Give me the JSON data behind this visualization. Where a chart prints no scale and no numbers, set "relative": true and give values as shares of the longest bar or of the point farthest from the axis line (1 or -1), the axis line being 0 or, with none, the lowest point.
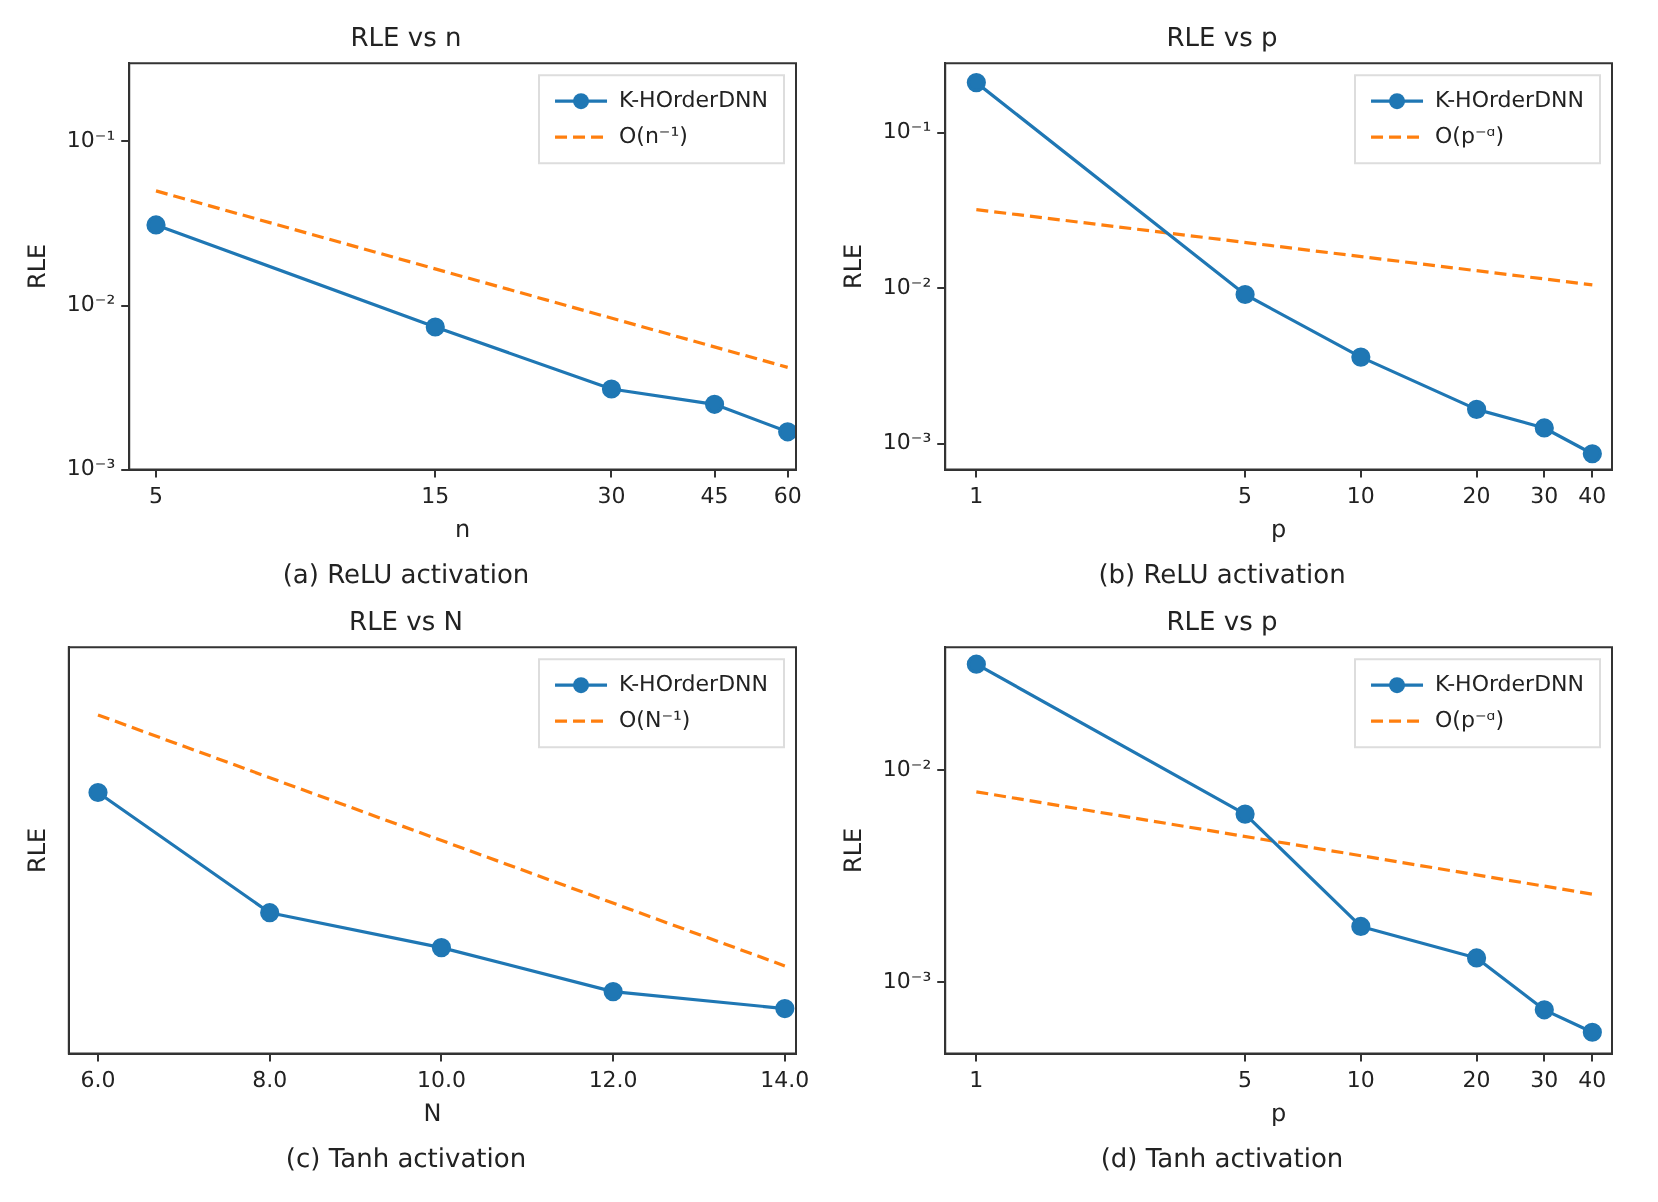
{
  "chart_data": [
    {
      "type": "line",
      "title": "RLE vs n",
      "xlabel": "n",
      "ylabel": "RLE",
      "annotations": [
        "(a) ReLU activation"
      ],
      "log": "xy",
      "xlim": [
        4.5,
        62
      ],
      "xticks": [
        5,
        15,
        30,
        45,
        60
      ],
      "ylim": [
        0.001,
        0.3
      ],
      "yticks": [
        {
          "value": 0.1,
          "label": "10⁻¹"
        },
        {
          "value": 0.01,
          "label": "10⁻²"
        },
        {
          "value": 0.001,
          "label": "10⁻³"
        }
      ],
      "grid": false,
      "legend": "top right",
      "x": [
        5,
        15,
        30,
        45,
        60
      ],
      "series": [
        {
          "name": "K-HOrderDNN",
          "color": "#1f77b4",
          "values": [
            0.031,
            0.0074,
            0.0031,
            0.0025,
            0.0017
          ],
          "marker": "circle",
          "line_style": "solid"
        },
        {
          "name": "O(n⁻¹)",
          "color": "#ff7f0e",
          "x": [
            5,
            60
          ],
          "values": [
            0.05,
            0.0042
          ],
          "marker": "none",
          "line_style": "dashed"
        }
      ]
    },
    {
      "type": "line",
      "title": "RLE vs p",
      "xlabel": "p",
      "ylabel": "RLE",
      "annotations": [
        "(b) ReLU activation"
      ],
      "log": "xy",
      "xlim": [
        0.83,
        45
      ],
      "xticks": [
        1,
        5,
        10,
        20,
        30,
        40
      ],
      "ylim": [
        0.00068,
        0.28
      ],
      "yticks": [
        {
          "value": 0.1,
          "label": "10⁻¹"
        },
        {
          "value": 0.01,
          "label": "10⁻²"
        },
        {
          "value": 0.001,
          "label": "10⁻³"
        }
      ],
      "grid": false,
      "legend": "top right",
      "x": [
        1,
        5,
        10,
        20,
        30,
        40
      ],
      "series": [
        {
          "name": "K-HOrderDNN",
          "color": "#1f77b4",
          "values": [
            0.21,
            0.0091,
            0.0036,
            0.00166,
            0.00126,
            0.00086
          ],
          "marker": "circle",
          "line_style": "solid"
        },
        {
          "name": "O(p⁻ᵅ)",
          "color": "#ff7f0e",
          "x": [
            1,
            40
          ],
          "values": [
            0.032,
            0.0105
          ],
          "marker": "none",
          "line_style": "dashed"
        }
      ]
    },
    {
      "type": "line",
      "title": "RLE vs N",
      "xlabel": "N",
      "ylabel": "RLE",
      "annotations": [
        "(c) Tanh activation"
      ],
      "relative": true,
      "xlim": [
        5.66,
        14.13
      ],
      "xticks": [
        {
          "value": 6,
          "label": "6.0"
        },
        {
          "value": 8,
          "label": "8.0"
        },
        {
          "value": 10,
          "label": "10.0"
        },
        {
          "value": 12,
          "label": "12.0"
        },
        {
          "value": 14,
          "label": "14.0"
        }
      ],
      "grid": false,
      "legend": "top right",
      "x": [
        6,
        8,
        10,
        12,
        14
      ],
      "series": [
        {
          "name": "K-HOrderDNN",
          "color": "#1f77b4",
          "values": [
            0.771,
            0.416,
            0.313,
            0.183,
            0.133
          ],
          "marker": "circle",
          "line_style": "solid"
        },
        {
          "name": "O(N⁻¹)",
          "color": "#ff7f0e",
          "x": [
            6,
            14
          ],
          "values": [
            1,
            0.259
          ],
          "marker": "none",
          "line_style": "dashed"
        }
      ]
    },
    {
      "type": "line",
      "title": "RLE vs p",
      "xlabel": "p",
      "ylabel": "RLE",
      "annotations": [
        "(d) Tanh activation"
      ],
      "log": "xy",
      "xlim": [
        0.83,
        45
      ],
      "xticks": [
        1,
        5,
        10,
        20,
        30,
        40
      ],
      "ylim": [
        0.00046,
        0.038
      ],
      "yticks": [
        {
          "value": 0.01,
          "label": "10⁻²"
        },
        {
          "value": 0.001,
          "label": "10⁻³"
        }
      ],
      "grid": false,
      "legend": "top right",
      "x": [
        1,
        5,
        10,
        20,
        30,
        40
      ],
      "series": [
        {
          "name": "K-HOrderDNN",
          "color": "#1f77b4",
          "values": [
            0.0316,
            0.0062,
            0.00183,
            0.0013,
            0.00074,
            0.00058
          ],
          "marker": "circle",
          "line_style": "solid"
        },
        {
          "name": "O(p⁻ᵅ)",
          "color": "#ff7f0e",
          "x": [
            1,
            40
          ],
          "values": [
            0.0079,
            0.0026
          ],
          "marker": "none",
          "line_style": "dashed"
        }
      ]
    }
  ]
}
